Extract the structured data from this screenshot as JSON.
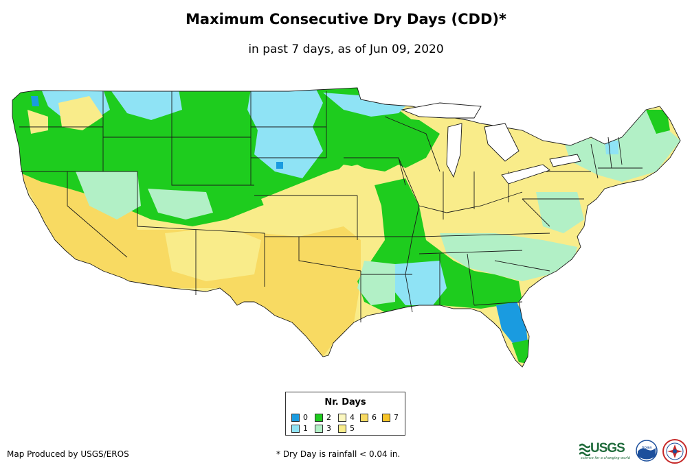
{
  "title": "Maximum Consecutive Dry Days (CDD)*",
  "subtitle": "in past 7 days, as of Jun 09, 2020",
  "colors": {
    "d0": "#1a9be0",
    "d1": "#8fe3f5",
    "d2": "#1ecc1e",
    "d3": "#b2f0c6",
    "d4": "#fbf7c0",
    "d5": "#f9ec8a",
    "d6": "#f8da62",
    "d7": "#f7c428",
    "border": "#1a1a1a",
    "usgs_green": "#1f6b3b"
  },
  "legend": {
    "title": "Nr. Days",
    "items": [
      {
        "label": "0",
        "color_key": "d0"
      },
      {
        "label": "1",
        "color_key": "d1"
      },
      {
        "label": "2",
        "color_key": "d2"
      },
      {
        "label": "3",
        "color_key": "d3"
      },
      {
        "label": "4",
        "color_key": "d4"
      },
      {
        "label": "5",
        "color_key": "d5"
      },
      {
        "label": "6",
        "color_key": "d6"
      },
      {
        "label": "7",
        "color_key": "d7"
      }
    ]
  },
  "footer": {
    "producer": "Map Produced by USGS/EROS",
    "footnote": "* Dry Day is rainfall < 0.04 in."
  },
  "logos": {
    "usgs": "USGS",
    "usgs_tagline": "science for a changing world",
    "noaa": "noaa"
  },
  "map_regions": [
    {
      "region": "Pacific Northwest",
      "days": 2
    },
    {
      "region": "California / Nevada",
      "days": 6
    },
    {
      "region": "Northern Rockies / Plains",
      "days": 2
    },
    {
      "region": "Desert Southwest / Texas",
      "days": 6
    },
    {
      "region": "Mississippi Valley",
      "days": 2
    },
    {
      "region": "Gulf Coast",
      "days": 1
    },
    {
      "region": "Florida peninsula",
      "days": 0
    },
    {
      "region": "Ohio Valley / Northeast",
      "days": 5
    },
    {
      "region": "New England",
      "days": 3
    }
  ]
}
